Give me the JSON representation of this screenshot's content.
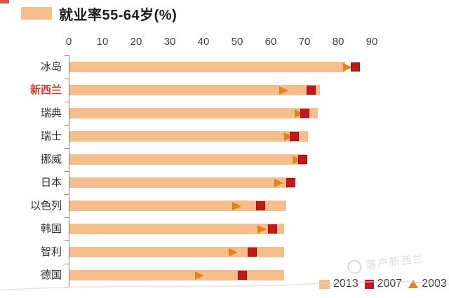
{
  "title": "就业率55-64岁(%)",
  "colors": {
    "bar_2013": "#F5BE8C",
    "square_2007": "#C2181B",
    "square_border": "#9E1013",
    "triangle_2003": "#E0841C",
    "highlight_label": "#D5392F",
    "axis": "#808285",
    "text": "#2D2D2D",
    "corner_fragment": "#D0342B",
    "watermark": "#BBBEC0"
  },
  "axis": {
    "ticks": [
      "0",
      "10",
      "20",
      "30",
      "40",
      "50",
      "60",
      "70",
      "80",
      "90"
    ],
    "max": 90
  },
  "legend": [
    {
      "label": "2013",
      "marker": "bar"
    },
    {
      "label": "2007",
      "marker": "square"
    },
    {
      "label": "2003",
      "marker": "triangle"
    }
  ],
  "watermark": {
    "text": "落户新西兰"
  },
  "chart_data": {
    "type": "bar",
    "orientation": "horizontal",
    "title": "就业率55-64岁(%)",
    "categories": [
      "冰岛",
      "新西兰",
      "瑞典",
      "瑞士",
      "挪威",
      "日本",
      "以色列",
      "韩国",
      "智利",
      "德国"
    ],
    "highlighted_category": "新西兰",
    "xlim": [
      0,
      90
    ],
    "grid": false,
    "legend_position": "bottom-right",
    "series": [
      {
        "name": "2013",
        "marker": "bar",
        "values": [
          82,
          74.5,
          74,
          71,
          70.5,
          67,
          64.5,
          64,
          64,
          64
        ]
      },
      {
        "name": "2007",
        "marker": "square",
        "values": [
          85,
          72,
          70,
          67,
          69.5,
          66,
          57,
          60.5,
          54.5,
          51.5
        ]
      },
      {
        "name": "2003",
        "marker": "triangle",
        "values": [
          83,
          64,
          68.5,
          65.5,
          68,
          62.5,
          50,
          57.5,
          49,
          39
        ]
      }
    ]
  }
}
